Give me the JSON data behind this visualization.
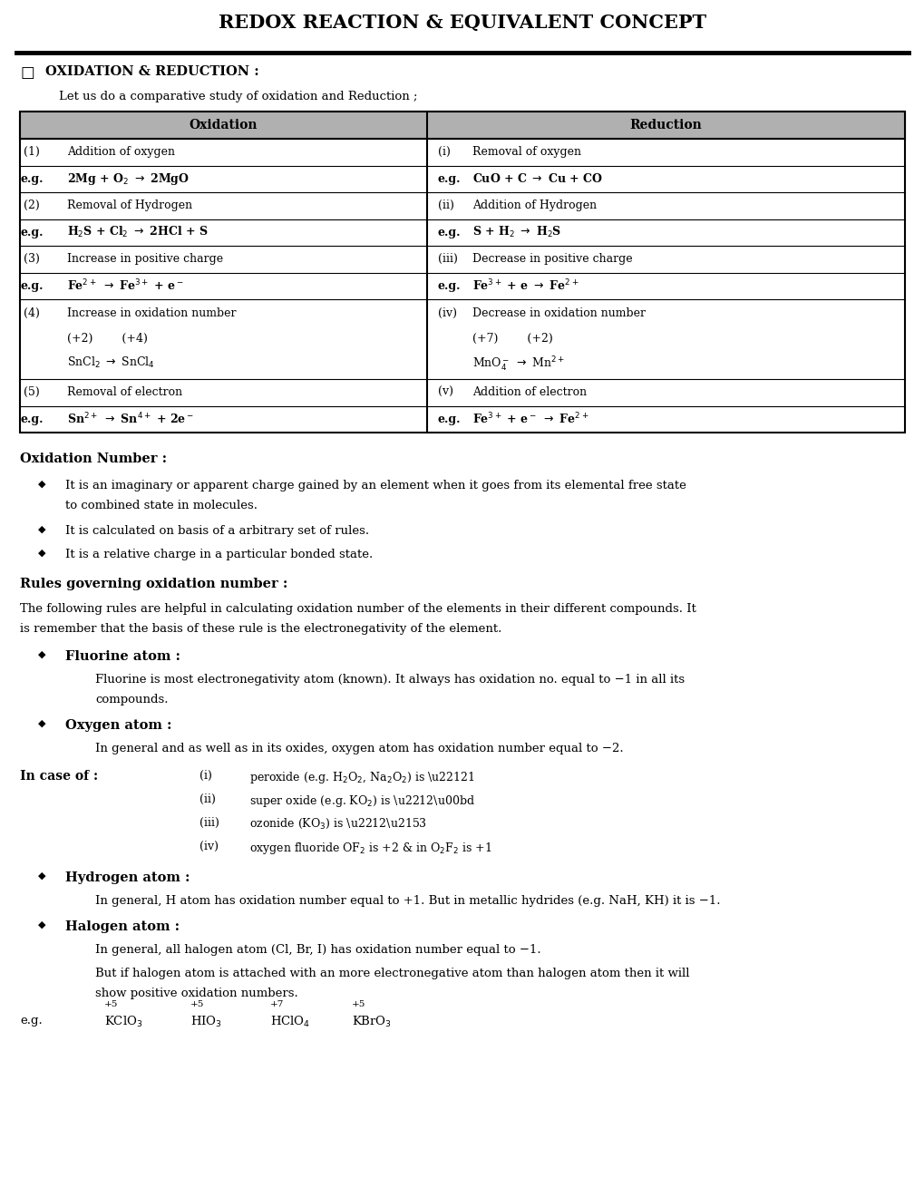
{
  "title": "REDOX REACTION & EQUIVALENT CONCEPT",
  "bg_color": "#ffffff",
  "table_header_bg": "#b0b0b0",
  "section1": "OXIDATION & REDUCTION :",
  "intro": "Let us do a comparative study of oxidation and Reduction ;",
  "ox_header": "Oxidation",
  "red_header": "Reduction",
  "oxidation_number_heading": "Oxidation Number :",
  "rules_heading": "Rules governing oxidation number :",
  "rules_para": "The following rules are helpful in calculating oxidation number of the elements in their different compounds. It is remember that the basis of these rule is the electronegativity of the element.",
  "fluorine_heading": "Fluorine atom :",
  "fluorine_text": "Fluorine is most electronegativity atom (known). It always has oxidation no. equal to −1 in all its compounds.",
  "oxygen_heading": "Oxygen atom :",
  "oxygen_text": "In general and as well as in its oxides, oxygen atom has oxidation number equal to −2.",
  "hydrogen_heading": "Hydrogen atom :",
  "hydrogen_text": "In general, H atom has oxidation number equal to +1. But in metallic hydrides (e.g. NaH, KH) it is −1.",
  "halogen_heading": "Halogen atom :",
  "halogen_text1": "In general, all halogen atom (Cl, Br, I) has oxidation number equal to −1.",
  "halogen_text2": "But if halogen atom is attached with an more electronegative atom than halogen atom then it will show positive oxidation numbers."
}
